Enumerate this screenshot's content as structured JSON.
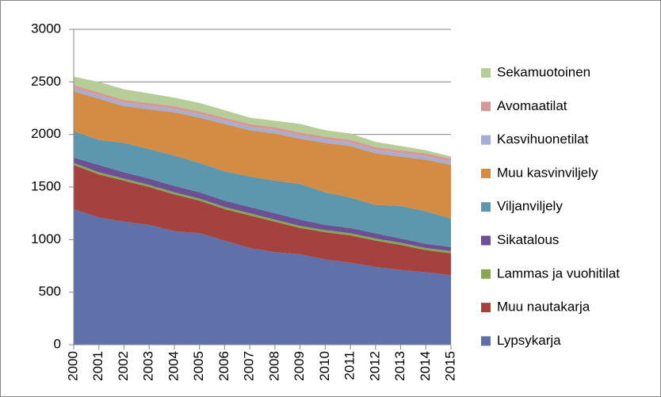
{
  "chart_data": {
    "type": "stacked_area",
    "categories": [
      "2000",
      "2001",
      "2002",
      "2003",
      "2004",
      "2005",
      "2006",
      "2007",
      "2008",
      "2009",
      "2010",
      "2011",
      "2012",
      "2013",
      "2014",
      "2015"
    ],
    "series": [
      {
        "name": "Lypsykarja",
        "color": "#6070a9",
        "values": [
          1290,
          1210,
          1170,
          1140,
          1080,
          1060,
          990,
          920,
          880,
          860,
          810,
          780,
          740,
          710,
          690,
          660
        ]
      },
      {
        "name": "Muu nautakarja",
        "color": "#a4423f",
        "values": [
          420,
          410,
          390,
          360,
          350,
          310,
          300,
          310,
          290,
          250,
          260,
          260,
          250,
          240,
          210,
          210
        ]
      },
      {
        "name": "Lammas ja vuohitilat",
        "color": "#88a752",
        "values": [
          20,
          20,
          20,
          20,
          20,
          20,
          20,
          20,
          20,
          20,
          20,
          20,
          20,
          20,
          20,
          20
        ]
      },
      {
        "name": "Sikatalous",
        "color": "#6b5193",
        "values": [
          50,
          70,
          60,
          60,
          60,
          60,
          60,
          60,
          60,
          60,
          50,
          50,
          50,
          40,
          40,
          40
        ]
      },
      {
        "name": "Viljanviljely",
        "color": "#5c97ae",
        "values": [
          250,
          240,
          280,
          280,
          290,
          280,
          280,
          290,
          310,
          340,
          310,
          290,
          270,
          310,
          310,
          270
        ]
      },
      {
        "name": "Muu kasvinviljely",
        "color": "#d48c45",
        "values": [
          380,
          390,
          350,
          380,
          410,
          430,
          450,
          440,
          450,
          430,
          470,
          490,
          490,
          470,
          490,
          510
        ]
      },
      {
        "name": "Kasvihuonetilat",
        "color": "#a3aed3",
        "values": [
          30,
          30,
          30,
          30,
          30,
          30,
          30,
          30,
          30,
          30,
          30,
          30,
          30,
          30,
          30,
          30
        ]
      },
      {
        "name": "Avomaatilat",
        "color": "#d49a99",
        "values": [
          30,
          30,
          30,
          30,
          30,
          30,
          30,
          30,
          30,
          30,
          30,
          30,
          30,
          30,
          30,
          30
        ]
      },
      {
        "name": "Sekamuotoinen",
        "color": "#b6cd97",
        "values": [
          80,
          100,
          100,
          90,
          80,
          80,
          70,
          60,
          60,
          80,
          60,
          60,
          50,
          40,
          30,
          20
        ]
      }
    ],
    "ylim": [
      0,
      3000
    ],
    "yticks": [
      0,
      500,
      1000,
      1500,
      2000,
      2500,
      3000
    ],
    "grid": true,
    "legend": "right"
  }
}
